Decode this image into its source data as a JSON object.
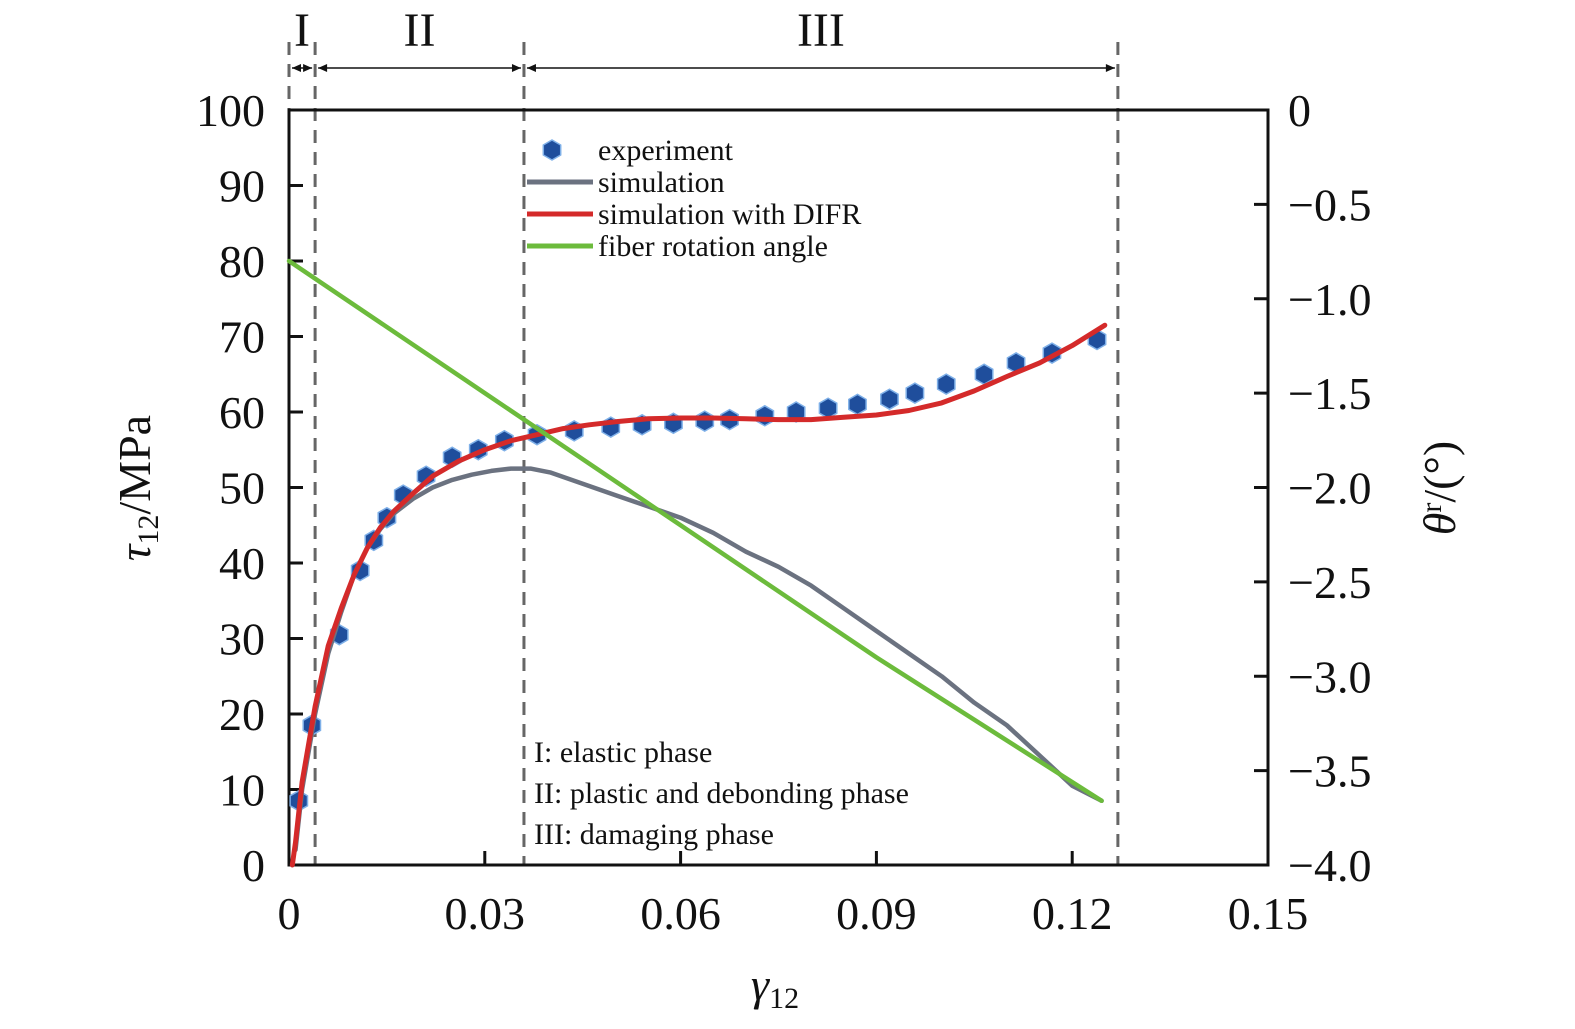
{
  "chart_data": {
    "type": "line",
    "xlabel": "γ",
    "xlabel_sub": "12",
    "ylabel_left_main": "τ",
    "ylabel_left_sub": "12",
    "ylabel_left_unit": "/MPa",
    "ylabel_right_main": "θ",
    "ylabel_right_sup": "r",
    "ylabel_right_unit": "/(°)",
    "xlim": [
      0,
      0.15
    ],
    "ylim_left": [
      0,
      100
    ],
    "ylim_right": [
      -4.0,
      0
    ],
    "x_ticks": [
      0,
      0.03,
      0.06,
      0.09,
      0.12,
      0.15
    ],
    "x_tick_labels": [
      "0",
      "0.03",
      "0.06",
      "0.09",
      "0.12",
      "0.15"
    ],
    "y_left_ticks": [
      0,
      10,
      20,
      30,
      40,
      50,
      60,
      70,
      80,
      90,
      100
    ],
    "y_left_tick_labels": [
      "0",
      "10",
      "20",
      "30",
      "40",
      "50",
      "60",
      "70",
      "80",
      "90",
      "100"
    ],
    "y_right_ticks": [
      0,
      -0.5,
      -1.0,
      -1.5,
      -2.0,
      -2.5,
      -3.0,
      -3.5,
      -4.0
    ],
    "y_right_tick_labels": [
      "0",
      "−0.5",
      "−1.0",
      "−1.5",
      "−2.0",
      "−2.5",
      "−3.0",
      "−3.5",
      "−4.0"
    ],
    "grid": false,
    "legend_position": "top-center",
    "series": [
      {
        "name": "experiment",
        "kind": "scatter",
        "axis": "left",
        "color": "#1f4e9c",
        "x": [
          0.0015,
          0.0035,
          0.0077,
          0.0109,
          0.013,
          0.015,
          0.0175,
          0.021,
          0.025,
          0.029,
          0.033,
          0.038,
          0.0437,
          0.0493,
          0.0541,
          0.0589,
          0.0637,
          0.0675,
          0.0729,
          0.0777,
          0.0826,
          0.0871,
          0.092,
          0.0959,
          0.1007,
          0.1065,
          0.1114,
          0.1169,
          0.1238
        ],
        "y": [
          8.5,
          18.5,
          30.5,
          39.0,
          43.0,
          46.0,
          49.0,
          51.5,
          54.0,
          55.0,
          56.2,
          57.0,
          57.5,
          58.0,
          58.3,
          58.5,
          58.8,
          59.0,
          59.5,
          60.0,
          60.5,
          61.0,
          61.7,
          62.5,
          63.7,
          65.0,
          66.5,
          67.8,
          69.6
        ]
      },
      {
        "name": "simulation",
        "kind": "line",
        "axis": "left",
        "color": "#6b7280",
        "x": [
          0.001,
          0.002,
          0.004,
          0.006,
          0.008,
          0.01,
          0.012,
          0.014,
          0.016,
          0.019,
          0.022,
          0.025,
          0.028,
          0.031,
          0.034,
          0.037,
          0.04,
          0.045,
          0.05,
          0.055,
          0.06,
          0.065,
          0.07,
          0.075,
          0.08,
          0.085,
          0.09,
          0.095,
          0.1,
          0.105,
          0.11,
          0.115,
          0.12,
          0.1245
        ],
        "y": [
          2,
          10,
          20,
          28,
          33.5,
          38.5,
          42,
          44.5,
          46.5,
          48.5,
          50,
          51,
          51.7,
          52.2,
          52.5,
          52.5,
          52,
          50.5,
          49,
          47.5,
          46,
          44,
          41.5,
          39.5,
          37,
          34,
          31,
          28,
          25,
          21.5,
          18.5,
          14.5,
          10.5,
          8.5
        ]
      },
      {
        "name": "simulation with DIFR",
        "kind": "line",
        "axis": "left",
        "color": "#d42a2a",
        "x": [
          0.0005,
          0.001,
          0.002,
          0.004,
          0.006,
          0.008,
          0.01,
          0.012,
          0.014,
          0.016,
          0.019,
          0.022,
          0.026,
          0.03,
          0.034,
          0.038,
          0.042,
          0.046,
          0.05,
          0.055,
          0.06,
          0.065,
          0.07,
          0.075,
          0.08,
          0.085,
          0.09,
          0.095,
          0.1,
          0.105,
          0.11,
          0.115,
          0.12,
          0.125
        ],
        "y": [
          0,
          3,
          11,
          21,
          29,
          34,
          38.5,
          42,
          44.7,
          46.8,
          49.2,
          51.5,
          53.5,
          55,
          56.2,
          57,
          57.8,
          58.3,
          58.7,
          59.1,
          59.2,
          59.2,
          59.1,
          59.0,
          59.0,
          59.3,
          59.6,
          60.2,
          61.2,
          62.8,
          64.7,
          66.5,
          68.8,
          71.5
        ]
      },
      {
        "name": "fiber rotation angle",
        "kind": "line",
        "axis": "right",
        "color": "#6cbb3c",
        "x": [
          0,
          0.03,
          0.06,
          0.09,
          0.1245
        ],
        "y": [
          -0.8,
          -1.5,
          -2.2,
          -2.9,
          -3.66
        ]
      }
    ],
    "phase_boundaries": [
      0.0,
      0.004,
      0.036,
      0.127
    ],
    "regions": [
      {
        "label": "I",
        "from": 0.0,
        "to": 0.004
      },
      {
        "label": "II",
        "from": 0.004,
        "to": 0.036
      },
      {
        "label": "III",
        "from": 0.036,
        "to": 0.127
      }
    ],
    "annotations": [
      "I: elastic phase",
      "II: plastic and debonding phase",
      "III: damaging phase"
    ]
  }
}
